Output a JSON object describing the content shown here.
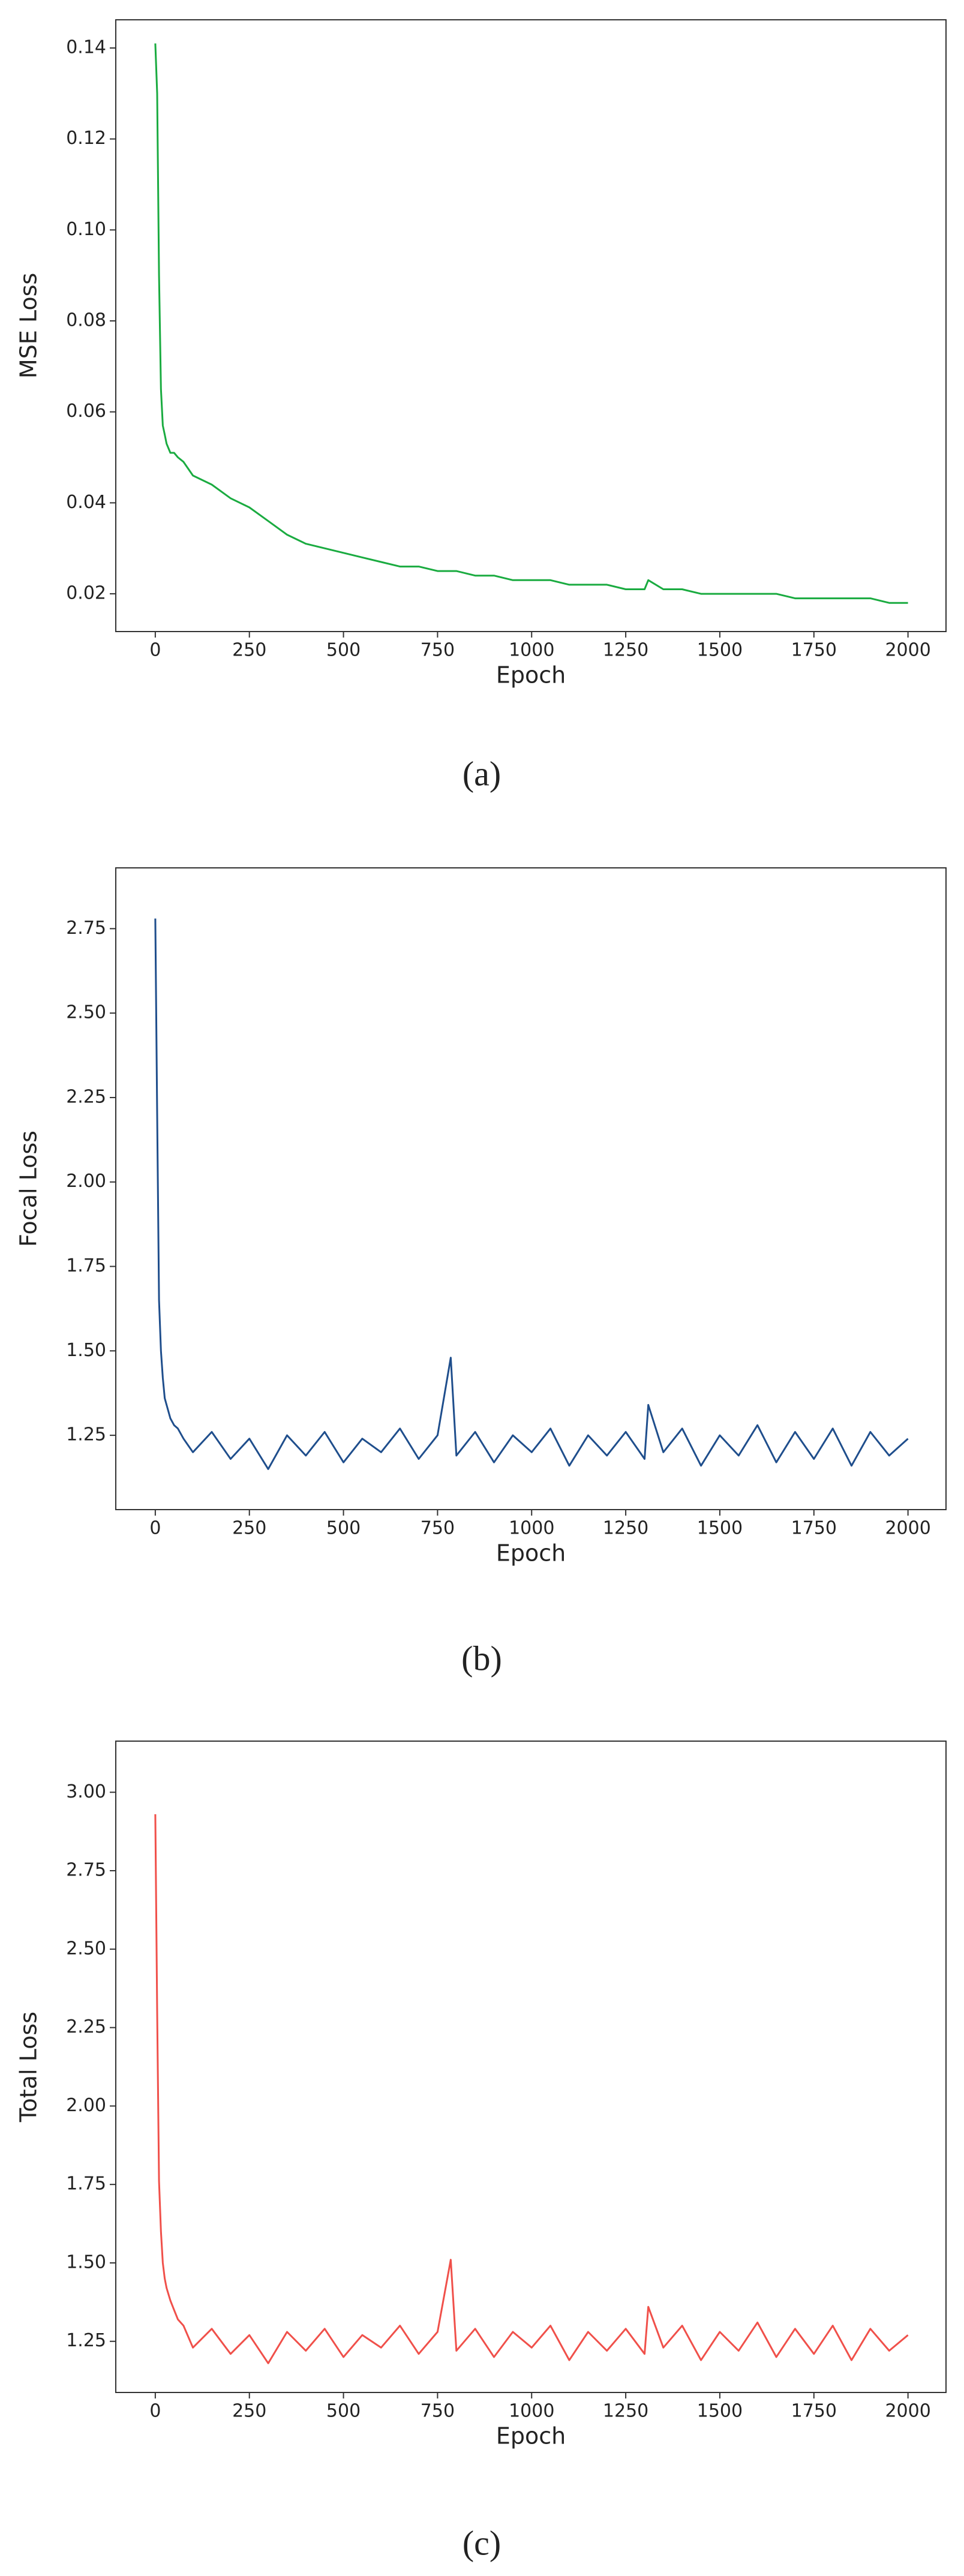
{
  "chart_data": [
    {
      "type": "line",
      "ylabel": "MSE Loss",
      "xlabel": "Epoch",
      "caption": "(a)",
      "color": "#1aab40",
      "x": [
        0,
        5,
        10,
        15,
        20,
        25,
        30,
        40,
        50,
        60,
        75,
        100,
        150,
        200,
        250,
        300,
        350,
        400,
        450,
        500,
        550,
        600,
        650,
        700,
        750,
        800,
        850,
        900,
        950,
        1000,
        1050,
        1100,
        1150,
        1200,
        1250,
        1300,
        1310,
        1350,
        1400,
        1450,
        1500,
        1550,
        1600,
        1650,
        1700,
        1750,
        1800,
        1850,
        1900,
        1950,
        2000
      ],
      "values": [
        0.141,
        0.13,
        0.09,
        0.065,
        0.057,
        0.055,
        0.053,
        0.051,
        0.051,
        0.05,
        0.049,
        0.046,
        0.044,
        0.041,
        0.039,
        0.036,
        0.033,
        0.031,
        0.03,
        0.029,
        0.028,
        0.027,
        0.026,
        0.026,
        0.025,
        0.025,
        0.024,
        0.024,
        0.023,
        0.023,
        0.023,
        0.022,
        0.022,
        0.022,
        0.021,
        0.021,
        0.023,
        0.021,
        0.021,
        0.02,
        0.02,
        0.02,
        0.02,
        0.02,
        0.019,
        0.019,
        0.019,
        0.019,
        0.019,
        0.018,
        0.018
      ],
      "xlim": [
        -105,
        2101
      ],
      "xticks": [
        0,
        250,
        500,
        750,
        1000,
        1250,
        1500,
        1750,
        2000
      ],
      "ylim": [
        0.0117,
        0.1462
      ],
      "yticks": [
        0.02,
        0.04,
        0.06,
        0.08,
        {
          "value": 0.1,
          "label": "0.10"
        },
        0.12,
        0.14
      ]
    },
    {
      "type": "line",
      "ylabel": "Focal Loss",
      "xlabel": "Epoch",
      "caption": "(b)",
      "color": "#1f4e8c",
      "x": [
        0,
        5,
        10,
        15,
        20,
        25,
        30,
        40,
        50,
        60,
        75,
        100,
        150,
        200,
        250,
        300,
        350,
        400,
        450,
        500,
        550,
        600,
        650,
        700,
        750,
        785,
        800,
        850,
        900,
        950,
        1000,
        1050,
        1100,
        1150,
        1200,
        1250,
        1300,
        1310,
        1350,
        1400,
        1450,
        1500,
        1550,
        1600,
        1650,
        1700,
        1750,
        1800,
        1850,
        1900,
        1950,
        2000
      ],
      "values": [
        2.78,
        2.2,
        1.65,
        1.5,
        1.42,
        1.36,
        1.34,
        1.3,
        1.28,
        1.27,
        1.24,
        1.2,
        1.26,
        1.18,
        1.24,
        1.15,
        1.25,
        1.19,
        1.26,
        1.17,
        1.24,
        1.2,
        1.27,
        1.18,
        1.25,
        1.48,
        1.19,
        1.26,
        1.17,
        1.25,
        1.2,
        1.27,
        1.16,
        1.25,
        1.19,
        1.26,
        1.18,
        1.34,
        1.2,
        1.27,
        1.16,
        1.25,
        1.19,
        1.28,
        1.17,
        1.26,
        1.18,
        1.27,
        1.16,
        1.26,
        1.19,
        1.24
      ],
      "xlim": [
        -105,
        2101
      ],
      "xticks": [
        0,
        250,
        500,
        750,
        1000,
        1250,
        1500,
        1750,
        2000
      ],
      "ylim": [
        1.03,
        2.93
      ],
      "yticks": [
        1.25,
        {
          "value": 1.5,
          "label": "1.50"
        },
        1.75,
        {
          "value": 2,
          "label": "2.00"
        },
        2.25,
        {
          "value": 2.5,
          "label": "2.50"
        },
        2.75
      ]
    },
    {
      "type": "line",
      "ylabel": "Total Loss",
      "xlabel": "Epoch",
      "caption": "(c)",
      "color": "#f0504a",
      "x": [
        0,
        5,
        10,
        15,
        20,
        25,
        30,
        40,
        50,
        60,
        75,
        100,
        150,
        200,
        250,
        300,
        350,
        400,
        450,
        500,
        550,
        600,
        650,
        700,
        750,
        785,
        800,
        850,
        900,
        950,
        1000,
        1050,
        1100,
        1150,
        1200,
        1250,
        1300,
        1310,
        1350,
        1400,
        1450,
        1500,
        1550,
        1600,
        1650,
        1700,
        1750,
        1800,
        1850,
        1900,
        1950,
        2000
      ],
      "values": [
        2.93,
        2.3,
        1.76,
        1.6,
        1.5,
        1.45,
        1.42,
        1.38,
        1.35,
        1.32,
        1.3,
        1.23,
        1.29,
        1.21,
        1.27,
        1.18,
        1.28,
        1.22,
        1.29,
        1.2,
        1.27,
        1.23,
        1.3,
        1.21,
        1.28,
        1.51,
        1.22,
        1.29,
        1.2,
        1.28,
        1.23,
        1.3,
        1.19,
        1.28,
        1.22,
        1.29,
        1.21,
        1.36,
        1.23,
        1.3,
        1.19,
        1.28,
        1.22,
        1.31,
        1.2,
        1.29,
        1.21,
        1.3,
        1.19,
        1.29,
        1.22,
        1.27
      ],
      "xlim": [
        -105,
        2101
      ],
      "xticks": [
        0,
        250,
        500,
        750,
        1000,
        1250,
        1500,
        1750,
        2000
      ],
      "ylim": [
        1.087,
        3.163
      ],
      "yticks": [
        1.25,
        {
          "value": 1.5,
          "label": "1.50"
        },
        1.75,
        {
          "value": 2,
          "label": "2.00"
        },
        2.25,
        {
          "value": 2.5,
          "label": "2.50"
        },
        2.75,
        {
          "value": 3,
          "label": "3.00"
        }
      ]
    }
  ]
}
